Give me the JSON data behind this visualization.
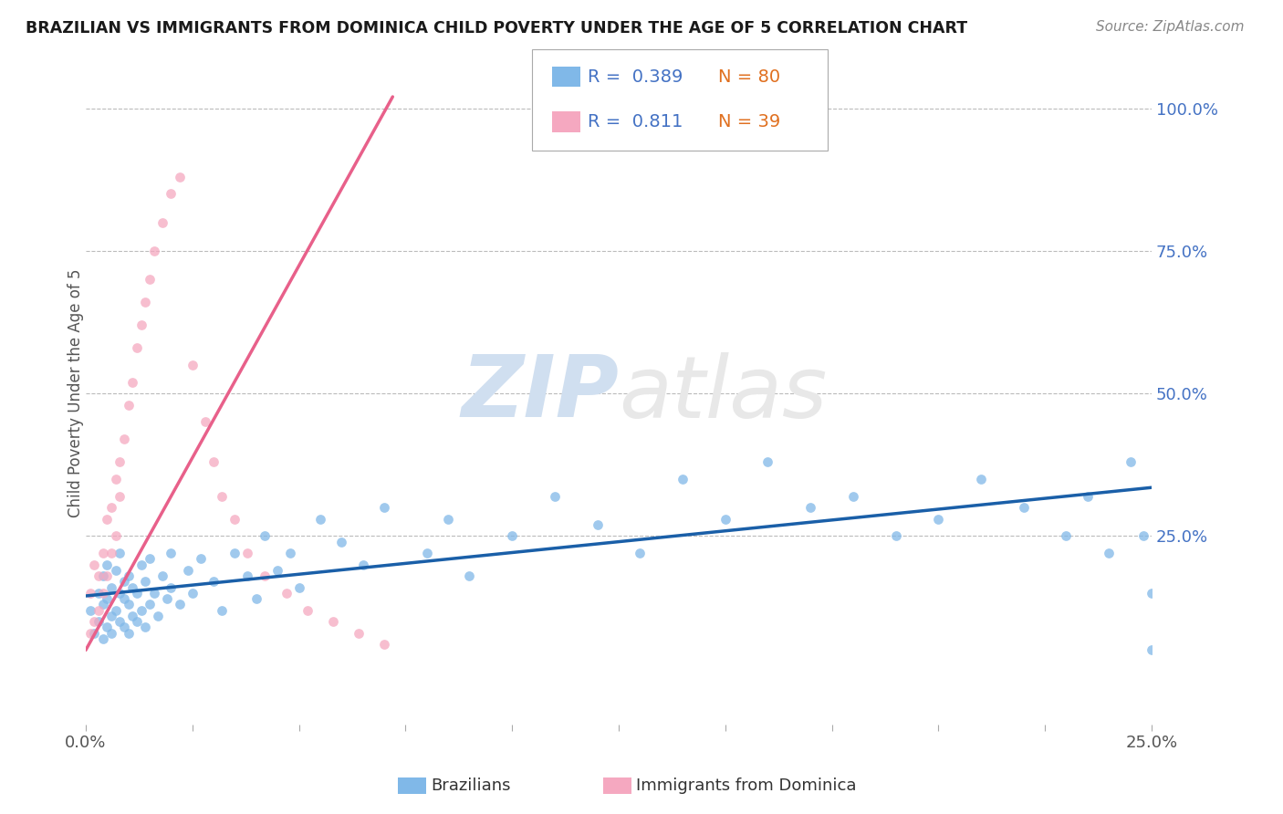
{
  "title": "BRAZILIAN VS IMMIGRANTS FROM DOMINICA CHILD POVERTY UNDER THE AGE OF 5 CORRELATION CHART",
  "source": "Source: ZipAtlas.com",
  "ylabel": "Child Poverty Under the Age of 5",
  "xlim": [
    0.0,
    0.25
  ],
  "ylim": [
    -0.08,
    1.08
  ],
  "legend_r1": "R =  0.389",
  "legend_n1": "N = 80",
  "legend_r2": "R =  0.811",
  "legend_n2": "N = 39",
  "color_blue": "#80b8e8",
  "color_pink": "#f5a8c0",
  "color_blue_line": "#1a5fa8",
  "color_pink_line": "#e8608a",
  "watermark_zip": "ZIP",
  "watermark_atlas": "atlas",
  "blue_scatter_x": [
    0.001,
    0.002,
    0.003,
    0.003,
    0.004,
    0.004,
    0.004,
    0.005,
    0.005,
    0.005,
    0.006,
    0.006,
    0.006,
    0.007,
    0.007,
    0.008,
    0.008,
    0.008,
    0.009,
    0.009,
    0.009,
    0.01,
    0.01,
    0.01,
    0.011,
    0.011,
    0.012,
    0.012,
    0.013,
    0.013,
    0.014,
    0.014,
    0.015,
    0.015,
    0.016,
    0.017,
    0.018,
    0.019,
    0.02,
    0.02,
    0.022,
    0.024,
    0.025,
    0.027,
    0.03,
    0.032,
    0.035,
    0.038,
    0.04,
    0.042,
    0.045,
    0.048,
    0.05,
    0.055,
    0.06,
    0.065,
    0.07,
    0.08,
    0.085,
    0.09,
    0.1,
    0.11,
    0.12,
    0.13,
    0.14,
    0.15,
    0.16,
    0.17,
    0.18,
    0.19,
    0.2,
    0.21,
    0.22,
    0.23,
    0.235,
    0.24,
    0.245,
    0.248,
    0.25,
    0.25
  ],
  "blue_scatter_y": [
    0.12,
    0.08,
    0.1,
    0.15,
    0.07,
    0.13,
    0.18,
    0.09,
    0.14,
    0.2,
    0.11,
    0.16,
    0.08,
    0.12,
    0.19,
    0.1,
    0.15,
    0.22,
    0.09,
    0.14,
    0.17,
    0.08,
    0.13,
    0.18,
    0.11,
    0.16,
    0.1,
    0.15,
    0.12,
    0.2,
    0.09,
    0.17,
    0.13,
    0.21,
    0.15,
    0.11,
    0.18,
    0.14,
    0.16,
    0.22,
    0.13,
    0.19,
    0.15,
    0.21,
    0.17,
    0.12,
    0.22,
    0.18,
    0.14,
    0.25,
    0.19,
    0.22,
    0.16,
    0.28,
    0.24,
    0.2,
    0.3,
    0.22,
    0.28,
    0.18,
    0.25,
    0.32,
    0.27,
    0.22,
    0.35,
    0.28,
    0.38,
    0.3,
    0.32,
    0.25,
    0.28,
    0.35,
    0.3,
    0.25,
    0.32,
    0.22,
    0.38,
    0.25,
    0.05,
    0.15
  ],
  "pink_scatter_x": [
    0.001,
    0.001,
    0.002,
    0.002,
    0.003,
    0.003,
    0.004,
    0.004,
    0.005,
    0.005,
    0.006,
    0.006,
    0.007,
    0.007,
    0.008,
    0.008,
    0.009,
    0.01,
    0.011,
    0.012,
    0.013,
    0.014,
    0.015,
    0.016,
    0.018,
    0.02,
    0.022,
    0.025,
    0.028,
    0.03,
    0.032,
    0.035,
    0.038,
    0.042,
    0.047,
    0.052,
    0.058,
    0.064,
    0.07
  ],
  "pink_scatter_y": [
    0.08,
    0.15,
    0.1,
    0.2,
    0.12,
    0.18,
    0.15,
    0.22,
    0.18,
    0.28,
    0.22,
    0.3,
    0.25,
    0.35,
    0.32,
    0.38,
    0.42,
    0.48,
    0.52,
    0.58,
    0.62,
    0.66,
    0.7,
    0.75,
    0.8,
    0.85,
    0.88,
    0.55,
    0.45,
    0.38,
    0.32,
    0.28,
    0.22,
    0.18,
    0.15,
    0.12,
    0.1,
    0.08,
    0.06
  ],
  "blue_trendline_x": [
    0.0,
    0.25
  ],
  "blue_trendline_y": [
    0.145,
    0.335
  ],
  "pink_trendline_x": [
    0.0,
    0.072
  ],
  "pink_trendline_y": [
    0.05,
    1.02
  ],
  "xtick_positions": [
    0.0,
    0.025,
    0.05,
    0.075,
    0.1,
    0.125,
    0.15,
    0.175,
    0.2,
    0.225,
    0.25
  ],
  "ytick_right": [
    0.25,
    0.5,
    0.75,
    1.0
  ],
  "ytick_labels": [
    "25.0%",
    "50.0%",
    "75.0%",
    "100.0%"
  ],
  "grid_yticks": [
    0.25,
    0.5,
    0.75,
    1.0
  ]
}
